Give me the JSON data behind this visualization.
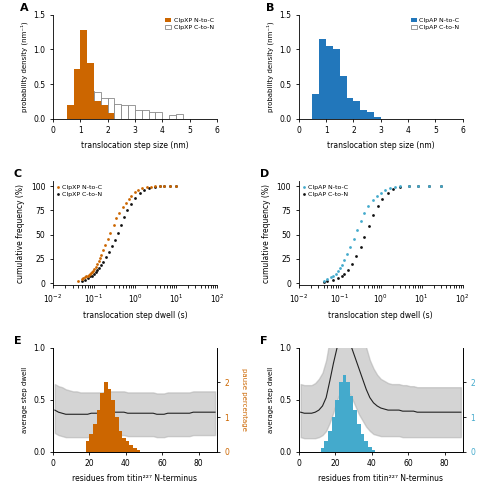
{
  "panel_A": {
    "title": "A",
    "orange_bars": {
      "edges": [
        0.5,
        0.75,
        1.0,
        1.25,
        1.5,
        1.75,
        2.0
      ],
      "heights": [
        0.2,
        0.72,
        1.28,
        0.8,
        0.25,
        0.2,
        0.08
      ]
    },
    "white_bars": {
      "edges": [
        0.5,
        0.75,
        1.0,
        1.25,
        1.5,
        1.75,
        2.0,
        2.25,
        2.5,
        2.75,
        3.0,
        3.25,
        3.5,
        3.75,
        4.0,
        4.25,
        4.5,
        4.75,
        5.0
      ],
      "heights": [
        0.12,
        0.28,
        0.33,
        0.4,
        0.38,
        0.3,
        0.3,
        0.22,
        0.2,
        0.2,
        0.13,
        0.12,
        0.1,
        0.1,
        0.0,
        0.06,
        0.07,
        0.0,
        0.0
      ]
    },
    "color_orange": "#CC6600",
    "color_white": "white",
    "xlabel": "translocation step size (nm)",
    "ylabel": "probability density (nm⁻¹)",
    "xlim": [
      0,
      6
    ],
    "ylim": [
      0,
      1.5
    ],
    "yticks": [
      0,
      0.5,
      1.0,
      1.5
    ],
    "xticks": [
      0,
      1,
      2,
      3,
      4,
      5,
      6
    ],
    "legend": [
      "ClpXP N-to-C",
      "ClpXP C-to-N"
    ]
  },
  "panel_B": {
    "title": "B",
    "blue_bars": {
      "edges": [
        0.5,
        0.75,
        1.0,
        1.25,
        1.5,
        1.75,
        2.0,
        2.25,
        2.5,
        2.75
      ],
      "heights": [
        0.36,
        1.15,
        1.05,
        1.0,
        0.62,
        0.3,
        0.25,
        0.13,
        0.1,
        0.02
      ]
    },
    "white_bars": {
      "edges": [
        0.5,
        0.75,
        1.0,
        1.25,
        1.5,
        1.75,
        2.0
      ],
      "heights": [
        0.36,
        0.88,
        0.0,
        0.45,
        0.0,
        0.0,
        0.0
      ]
    },
    "color_blue": "#2277BB",
    "color_white": "white",
    "xlabel": "translocation step size (nm)",
    "ylabel": "probability density (nm⁻¹)",
    "xlim": [
      0,
      6
    ],
    "ylim": [
      0,
      1.5
    ],
    "yticks": [
      0,
      0.5,
      1.0,
      1.5
    ],
    "xticks": [
      0,
      1,
      2,
      3,
      4,
      5,
      6
    ],
    "legend": [
      "ClpAP N-to-C",
      "ClpAP C-to-N"
    ]
  },
  "panel_C": {
    "title": "C",
    "orange_x": [
      0.04,
      0.05,
      0.055,
      0.06,
      0.065,
      0.07,
      0.075,
      0.08,
      0.085,
      0.09,
      0.095,
      0.1,
      0.11,
      0.12,
      0.13,
      0.14,
      0.15,
      0.17,
      0.19,
      0.22,
      0.25,
      0.3,
      0.35,
      0.4,
      0.5,
      0.6,
      0.7,
      0.8,
      1.0,
      1.2,
      1.5,
      2.0,
      2.5,
      3.0,
      4.0,
      5.0,
      7.0,
      10.0
    ],
    "orange_y": [
      2,
      4,
      5,
      6,
      7,
      8,
      9,
      10,
      11,
      12,
      13,
      15,
      17,
      20,
      23,
      26,
      29,
      34,
      39,
      46,
      52,
      60,
      67,
      72,
      78,
      83,
      87,
      90,
      94,
      96,
      98,
      99,
      99.5,
      100,
      100,
      100,
      100,
      100
    ],
    "black_x": [
      0.05,
      0.06,
      0.07,
      0.08,
      0.09,
      0.1,
      0.11,
      0.12,
      0.13,
      0.15,
      0.17,
      0.2,
      0.23,
      0.27,
      0.32,
      0.38,
      0.45,
      0.55,
      0.65,
      0.8,
      1.0,
      1.3,
      1.7,
      2.2,
      3.0,
      4.0,
      5.0,
      7.0,
      10.0
    ],
    "black_y": [
      2,
      3,
      5,
      7,
      8,
      10,
      12,
      14,
      16,
      19,
      22,
      27,
      32,
      38,
      45,
      52,
      60,
      68,
      75,
      82,
      88,
      93,
      96,
      98,
      99,
      100,
      100,
      100,
      100
    ],
    "color_orange": "#CC6600",
    "color_black": "#111111",
    "xlabel": "translocation step dwell (s)",
    "ylabel": "cumulative frequency (%)",
    "ylim": [
      -2,
      105
    ],
    "yticks": [
      0,
      25,
      50,
      75,
      100
    ],
    "legend": [
      "ClpXP N-to-C",
      "ClpXP C-to-N"
    ]
  },
  "panel_D": {
    "title": "D",
    "blue_x": [
      0.04,
      0.05,
      0.06,
      0.07,
      0.08,
      0.09,
      0.1,
      0.11,
      0.13,
      0.15,
      0.18,
      0.22,
      0.27,
      0.33,
      0.4,
      0.5,
      0.65,
      0.8,
      1.0,
      1.3,
      1.7,
      2.2,
      3.0,
      5.0,
      8.0,
      15.0,
      30.0
    ],
    "blue_y": [
      2,
      4,
      6,
      8,
      10,
      13,
      16,
      19,
      24,
      30,
      37,
      46,
      55,
      64,
      72,
      79,
      86,
      90,
      93,
      96,
      98,
      99,
      100,
      100,
      100,
      100,
      100
    ],
    "black_x": [
      0.04,
      0.05,
      0.07,
      0.09,
      0.11,
      0.13,
      0.16,
      0.2,
      0.25,
      0.32,
      0.4,
      0.52,
      0.65,
      0.85,
      1.1,
      1.5,
      2.0,
      3.0,
      5.0,
      8.0,
      15.0,
      30.0
    ],
    "black_y": [
      1,
      2,
      3,
      5,
      7,
      10,
      14,
      20,
      28,
      37,
      48,
      59,
      70,
      79,
      87,
      93,
      97,
      99,
      100,
      100,
      100,
      100
    ],
    "color_blue": "#44AACC",
    "color_black": "#111111",
    "xlabel": "translocation step dwell (s)",
    "ylabel": "cumulative frequency (%)",
    "ylim": [
      -2,
      105
    ],
    "yticks": [
      0,
      25,
      50,
      75,
      100
    ],
    "legend": [
      "ClpAP N-to-C",
      "ClpAP C-to-N"
    ]
  },
  "panel_E": {
    "title": "E",
    "x": [
      1,
      3,
      5,
      7,
      9,
      11,
      13,
      15,
      17,
      19,
      21,
      23,
      25,
      27,
      29,
      31,
      33,
      35,
      37,
      39,
      41,
      43,
      45,
      47,
      49,
      51,
      53,
      55,
      57,
      59,
      61,
      63,
      65,
      67,
      69,
      71,
      73,
      75,
      77,
      79,
      81,
      83,
      85,
      87,
      89
    ],
    "line_mean": [
      0.4,
      0.38,
      0.37,
      0.36,
      0.36,
      0.36,
      0.36,
      0.36,
      0.36,
      0.36,
      0.37,
      0.37,
      0.37,
      0.37,
      0.38,
      0.38,
      0.38,
      0.38,
      0.38,
      0.38,
      0.37,
      0.37,
      0.37,
      0.37,
      0.37,
      0.37,
      0.37,
      0.37,
      0.36,
      0.36,
      0.36,
      0.37,
      0.37,
      0.37,
      0.37,
      0.37,
      0.37,
      0.37,
      0.38,
      0.38,
      0.38,
      0.38,
      0.38,
      0.38,
      0.38
    ],
    "line_upper": [
      0.65,
      0.63,
      0.62,
      0.6,
      0.59,
      0.58,
      0.58,
      0.57,
      0.57,
      0.57,
      0.57,
      0.57,
      0.57,
      0.57,
      0.58,
      0.58,
      0.58,
      0.58,
      0.58,
      0.58,
      0.57,
      0.57,
      0.57,
      0.57,
      0.57,
      0.57,
      0.57,
      0.57,
      0.56,
      0.56,
      0.56,
      0.57,
      0.57,
      0.57,
      0.57,
      0.57,
      0.57,
      0.57,
      0.58,
      0.58,
      0.58,
      0.58,
      0.58,
      0.58,
      0.58
    ],
    "line_lower": [
      0.18,
      0.16,
      0.15,
      0.14,
      0.14,
      0.14,
      0.14,
      0.14,
      0.14,
      0.14,
      0.15,
      0.15,
      0.15,
      0.15,
      0.16,
      0.16,
      0.16,
      0.16,
      0.16,
      0.16,
      0.15,
      0.15,
      0.15,
      0.15,
      0.15,
      0.15,
      0.15,
      0.15,
      0.14,
      0.14,
      0.14,
      0.15,
      0.15,
      0.15,
      0.15,
      0.15,
      0.15,
      0.15,
      0.16,
      0.16,
      0.16,
      0.16,
      0.16,
      0.16,
      0.16
    ],
    "bar_x": [
      19,
      21,
      23,
      25,
      27,
      29,
      31,
      33,
      35,
      37,
      39,
      41,
      43,
      45,
      47
    ],
    "bar_heights": [
      0.3,
      0.5,
      0.8,
      1.2,
      1.7,
      2.0,
      1.8,
      1.5,
      1.0,
      0.6,
      0.4,
      0.3,
      0.2,
      0.1,
      0.05
    ],
    "color_line": "#222222",
    "color_bar": "#CC6600",
    "xlabel": "residues from titin²²⁷ N-terminus",
    "ylabel_left": "average step dwell",
    "ylabel_right": "pause percentage",
    "xlim": [
      0,
      90
    ],
    "ylim_left": [
      0,
      1.0
    ],
    "ylim_right": [
      0,
      3
    ],
    "yticks_left": [
      0,
      0.5,
      1.0
    ],
    "yticks_right": [
      0,
      1,
      2
    ],
    "xticks": [
      0,
      20,
      40,
      60,
      80
    ]
  },
  "panel_F": {
    "title": "F",
    "x": [
      1,
      3,
      5,
      7,
      9,
      11,
      13,
      15,
      17,
      19,
      21,
      23,
      25,
      27,
      29,
      31,
      33,
      35,
      37,
      39,
      41,
      43,
      45,
      47,
      49,
      51,
      53,
      55,
      57,
      59,
      61,
      63,
      65,
      67,
      69,
      71,
      73,
      75,
      77,
      79,
      81,
      83,
      85,
      87,
      89
    ],
    "line_mean": [
      0.38,
      0.37,
      0.37,
      0.37,
      0.38,
      0.4,
      0.44,
      0.52,
      0.68,
      0.85,
      1.0,
      1.1,
      1.12,
      1.08,
      1.0,
      0.9,
      0.8,
      0.7,
      0.6,
      0.52,
      0.47,
      0.44,
      0.42,
      0.41,
      0.4,
      0.4,
      0.4,
      0.4,
      0.39,
      0.39,
      0.39,
      0.39,
      0.38,
      0.38,
      0.38,
      0.38,
      0.38,
      0.38,
      0.38,
      0.38,
      0.38,
      0.38,
      0.38,
      0.38,
      0.38
    ],
    "line_upper": [
      0.65,
      0.64,
      0.64,
      0.64,
      0.66,
      0.7,
      0.76,
      0.88,
      1.08,
      1.3,
      1.5,
      1.65,
      1.7,
      1.65,
      1.55,
      1.42,
      1.28,
      1.15,
      1.0,
      0.88,
      0.8,
      0.74,
      0.7,
      0.68,
      0.66,
      0.65,
      0.65,
      0.65,
      0.64,
      0.64,
      0.63,
      0.63,
      0.62,
      0.62,
      0.62,
      0.62,
      0.62,
      0.62,
      0.62,
      0.62,
      0.62,
      0.62,
      0.62,
      0.62,
      0.62
    ],
    "line_lower": [
      0.14,
      0.13,
      0.13,
      0.13,
      0.13,
      0.14,
      0.16,
      0.2,
      0.28,
      0.38,
      0.5,
      0.58,
      0.6,
      0.58,
      0.52,
      0.44,
      0.36,
      0.3,
      0.24,
      0.2,
      0.17,
      0.16,
      0.15,
      0.15,
      0.15,
      0.15,
      0.15,
      0.15,
      0.14,
      0.14,
      0.14,
      0.14,
      0.14,
      0.14,
      0.14,
      0.14,
      0.14,
      0.14,
      0.14,
      0.14,
      0.14,
      0.14,
      0.14,
      0.14,
      0.14
    ],
    "bar_x": [
      13,
      15,
      17,
      19,
      21,
      23,
      25,
      27,
      29,
      31,
      33,
      35,
      37,
      39,
      41
    ],
    "bar_heights": [
      0.1,
      0.3,
      0.6,
      1.0,
      1.5,
      2.0,
      2.2,
      2.0,
      1.6,
      1.2,
      0.8,
      0.5,
      0.3,
      0.15,
      0.05
    ],
    "color_line": "#222222",
    "color_bar": "#44AACC",
    "xlabel": "residues from titin²²⁷ N-terminus",
    "ylabel_left": "average step dwell",
    "ylabel_right": "pause percentage",
    "xlim": [
      0,
      90
    ],
    "ylim_left": [
      0,
      1.0
    ],
    "ylim_right": [
      0,
      3
    ],
    "yticks_left": [
      0,
      0.5,
      1.0
    ],
    "yticks_right": [
      0,
      1,
      2
    ],
    "xticks": [
      0,
      20,
      40,
      60,
      80
    ]
  }
}
